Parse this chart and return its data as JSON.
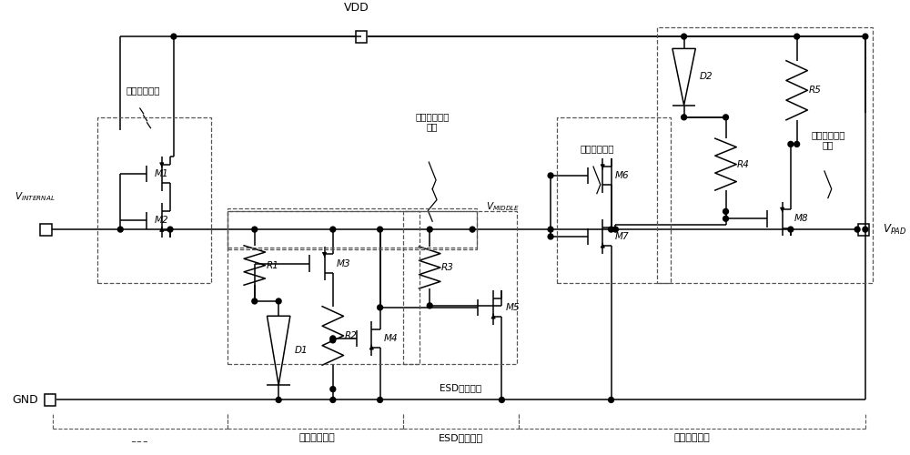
{
  "fig_w": 10.0,
  "fig_h": 5.0,
  "bg": "#ffffff",
  "lc": "#000000",
  "dash_c": "#555555",
  "labels": {
    "VDD": "VDD",
    "GND": "GND",
    "VINT": "$V_{INTERNAL}$",
    "VMID": "$V_{MIDDLE}$",
    "VPAD": "$V_{PAD}$",
    "ovp_sw": "过压保护开关",
    "ovp_unit": "过压保护单元",
    "ovp_ctrl": "过压保护控制\n电路",
    "esd_unit": "ESD泄放单元",
    "nvp_sw": "负压保护开关",
    "nvp_unit": "负压保护单元",
    "nvp_ctrl": "负压保护控制\n电路"
  }
}
